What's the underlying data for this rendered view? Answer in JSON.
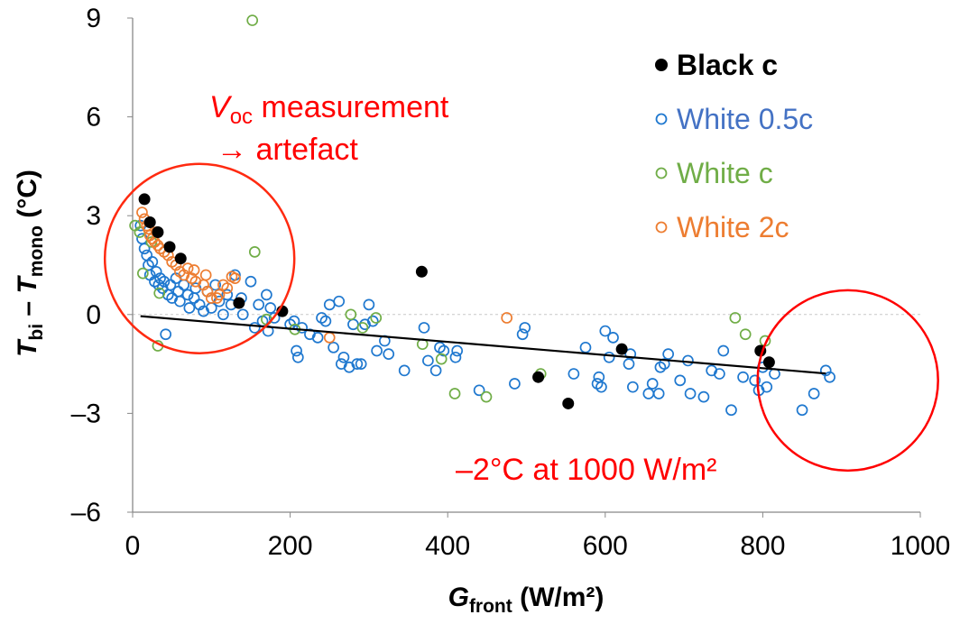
{
  "chart_data": {
    "type": "scatter",
    "xlabel": {
      "main": "G",
      "sub": "front",
      "rest": " (W/m²)"
    },
    "ylabel": {
      "a": "T",
      "a_sub": "bi",
      "mid": " – ",
      "b": "T",
      "b_sub": "mono",
      "rest": " (°C)"
    },
    "xlim": [
      0,
      1000
    ],
    "ylim": [
      -6,
      9
    ],
    "xticks": [
      "0",
      "200",
      "400",
      "600",
      "800",
      "1000"
    ],
    "yticks": [
      "9",
      "6",
      "3",
      "0",
      "–3",
      "–6"
    ],
    "xtick_values": [
      0,
      200,
      400,
      600,
      800,
      1000
    ],
    "ytick_values": [
      9,
      6,
      3,
      0,
      -3,
      -6
    ],
    "grid": "dashed line at y=0 only",
    "legend_placement": "top-right",
    "series": [
      {
        "name": "Black c",
        "color": "#000000",
        "marker": "filled-circle",
        "legend_color": "#000000",
        "points": [
          [
            15,
            3.5
          ],
          [
            22,
            2.8
          ],
          [
            32,
            2.5
          ],
          [
            47,
            2.05
          ],
          [
            61,
            1.7
          ],
          [
            135,
            0.35
          ],
          [
            190,
            0.1
          ],
          [
            367,
            1.3
          ],
          [
            515,
            -1.9
          ],
          [
            553,
            -2.7
          ],
          [
            621,
            -1.05
          ],
          [
            797,
            -1.1
          ],
          [
            808,
            -1.45
          ]
        ]
      },
      {
        "name": "White 0.5c",
        "color": "#1f78cf",
        "marker": "open-circle",
        "legend_color": "#4472c4",
        "points": [
          [
            10,
            2.7
          ],
          [
            12,
            2.3
          ],
          [
            15,
            2.0
          ],
          [
            18,
            1.8
          ],
          [
            20,
            1.5
          ],
          [
            22,
            1.2
          ],
          [
            25,
            1.6
          ],
          [
            28,
            1.0
          ],
          [
            30,
            1.3
          ],
          [
            33,
            0.9
          ],
          [
            35,
            1.1
          ],
          [
            38,
            0.8
          ],
          [
            40,
            1.0
          ],
          [
            42,
            -0.6
          ],
          [
            45,
            0.6
          ],
          [
            48,
            0.9
          ],
          [
            50,
            0.5
          ],
          [
            55,
            1.1
          ],
          [
            58,
            0.7
          ],
          [
            60,
            0.4
          ],
          [
            65,
            0.9
          ],
          [
            70,
            0.6
          ],
          [
            72,
            0.2
          ],
          [
            78,
            0.5
          ],
          [
            80,
            0.8
          ],
          [
            85,
            0.3
          ],
          [
            90,
            0.1
          ],
          [
            95,
            0.7
          ],
          [
            100,
            0.2
          ],
          [
            105,
            0.9
          ],
          [
            110,
            0.4
          ],
          [
            115,
            0.0
          ],
          [
            120,
            0.6
          ],
          [
            125,
            0.3
          ],
          [
            130,
            1.2
          ],
          [
            138,
            0.5
          ],
          [
            140,
            0.0
          ],
          [
            150,
            1.0
          ],
          [
            155,
            -0.4
          ],
          [
            160,
            0.3
          ],
          [
            165,
            -0.2
          ],
          [
            170,
            0.6
          ],
          [
            172,
            -0.5
          ],
          [
            175,
            0.2
          ],
          [
            180,
            -0.1
          ],
          [
            200,
            -0.3
          ],
          [
            205,
            -0.2
          ],
          [
            208,
            -1.1
          ],
          [
            210,
            -1.3
          ],
          [
            215,
            -0.4
          ],
          [
            225,
            -0.6
          ],
          [
            235,
            -0.7
          ],
          [
            240,
            -0.1
          ],
          [
            245,
            -0.2
          ],
          [
            250,
            0.3
          ],
          [
            255,
            -1.0
          ],
          [
            262,
            0.4
          ],
          [
            265,
            -1.5
          ],
          [
            268,
            -1.3
          ],
          [
            275,
            -1.6
          ],
          [
            280,
            -0.3
          ],
          [
            285,
            -1.5
          ],
          [
            290,
            -1.5
          ],
          [
            295,
            -0.3
          ],
          [
            300,
            0.3
          ],
          [
            305,
            -0.2
          ],
          [
            310,
            -1.1
          ],
          [
            320,
            -0.8
          ],
          [
            325,
            -1.2
          ],
          [
            345,
            -1.7
          ],
          [
            370,
            -0.4
          ],
          [
            375,
            -1.4
          ],
          [
            385,
            -1.7
          ],
          [
            390,
            -1.0
          ],
          [
            395,
            -1.1
          ],
          [
            410,
            -1.3
          ],
          [
            412,
            -1.1
          ],
          [
            440,
            -2.3
          ],
          [
            485,
            -2.1
          ],
          [
            495,
            -0.6
          ],
          [
            498,
            -0.4
          ],
          [
            560,
            -1.8
          ],
          [
            575,
            -1.0
          ],
          [
            590,
            -2.1
          ],
          [
            592,
            -1.9
          ],
          [
            595,
            -2.2
          ],
          [
            600,
            -0.5
          ],
          [
            605,
            -1.3
          ],
          [
            610,
            -0.7
          ],
          [
            630,
            -1.5
          ],
          [
            632,
            -1.2
          ],
          [
            635,
            -2.2
          ],
          [
            655,
            -2.4
          ],
          [
            660,
            -2.1
          ],
          [
            668,
            -2.4
          ],
          [
            670,
            -1.6
          ],
          [
            675,
            -1.5
          ],
          [
            680,
            -1.2
          ],
          [
            695,
            -2.0
          ],
          [
            705,
            -1.4
          ],
          [
            708,
            -2.4
          ],
          [
            725,
            -2.5
          ],
          [
            735,
            -1.7
          ],
          [
            745,
            -1.8
          ],
          [
            750,
            -1.1
          ],
          [
            760,
            -2.9
          ],
          [
            775,
            -1.9
          ],
          [
            790,
            -2.0
          ],
          [
            795,
            -2.3
          ],
          [
            800,
            -1.6
          ],
          [
            805,
            -2.2
          ],
          [
            815,
            -1.8
          ],
          [
            850,
            -2.9
          ],
          [
            865,
            -2.4
          ],
          [
            880,
            -1.7
          ],
          [
            885,
            -1.9
          ]
        ]
      },
      {
        "name": "White c",
        "color": "#70ad47",
        "marker": "open-circle",
        "legend_color": "#70ad47",
        "points": [
          [
            152,
            8.93
          ],
          [
            155,
            1.9
          ],
          [
            3,
            2.7
          ],
          [
            9,
            2.5
          ],
          [
            13,
            1.25
          ],
          [
            24,
            2.2
          ],
          [
            34,
            0.65
          ],
          [
            32,
            -0.95
          ],
          [
            170,
            -0.15
          ],
          [
            206,
            -0.45
          ],
          [
            277,
            0.0
          ],
          [
            292,
            -0.4
          ],
          [
            309,
            -0.1
          ],
          [
            368,
            -0.9
          ],
          [
            392,
            -1.35
          ],
          [
            409,
            -2.4
          ],
          [
            449,
            -2.5
          ],
          [
            518,
            -1.8
          ],
          [
            765,
            -0.1
          ],
          [
            778,
            -0.6
          ],
          [
            803,
            -0.8
          ]
        ]
      },
      {
        "name": "White 2c",
        "color": "#ed7d31",
        "marker": "open-circle",
        "legend_color": "#ed7d31",
        "points": [
          [
            12,
            3.1
          ],
          [
            15,
            2.9
          ],
          [
            18,
            2.7
          ],
          [
            20,
            2.6
          ],
          [
            22,
            2.4
          ],
          [
            25,
            2.3
          ],
          [
            28,
            2.2
          ],
          [
            30,
            2.5
          ],
          [
            32,
            2.1
          ],
          [
            35,
            2.0
          ],
          [
            40,
            1.9
          ],
          [
            45,
            1.8
          ],
          [
            50,
            1.6
          ],
          [
            55,
            1.5
          ],
          [
            60,
            1.3
          ],
          [
            65,
            1.2
          ],
          [
            70,
            1.4
          ],
          [
            75,
            1.1
          ],
          [
            78,
            1.35
          ],
          [
            80,
            1.0
          ],
          [
            90,
            0.9
          ],
          [
            93,
            1.2
          ],
          [
            95,
            0.7
          ],
          [
            100,
            0.5
          ],
          [
            107,
            0.5
          ],
          [
            110,
            0.6
          ],
          [
            115,
            0.9
          ],
          [
            120,
            0.8
          ],
          [
            126,
            1.15
          ],
          [
            130,
            1.1
          ],
          [
            250,
            -0.7
          ],
          [
            475,
            -0.1
          ]
        ]
      }
    ],
    "trendline": {
      "x": [
        10,
        880
      ],
      "y": [
        -0.05,
        -1.79
      ],
      "color": "#000000"
    },
    "annotations": {
      "left": {
        "v": "V",
        "sub": "oc",
        "line1_rest": " measurement",
        "line2": "→ artefact",
        "color": "#ff0000",
        "circle_center": [
          85,
          1.7
        ]
      },
      "right": {
        "text": "–2°C at 1000 W/m²",
        "color": "#ff0000",
        "circle_center": [
          908,
          -2.0
        ]
      }
    }
  }
}
